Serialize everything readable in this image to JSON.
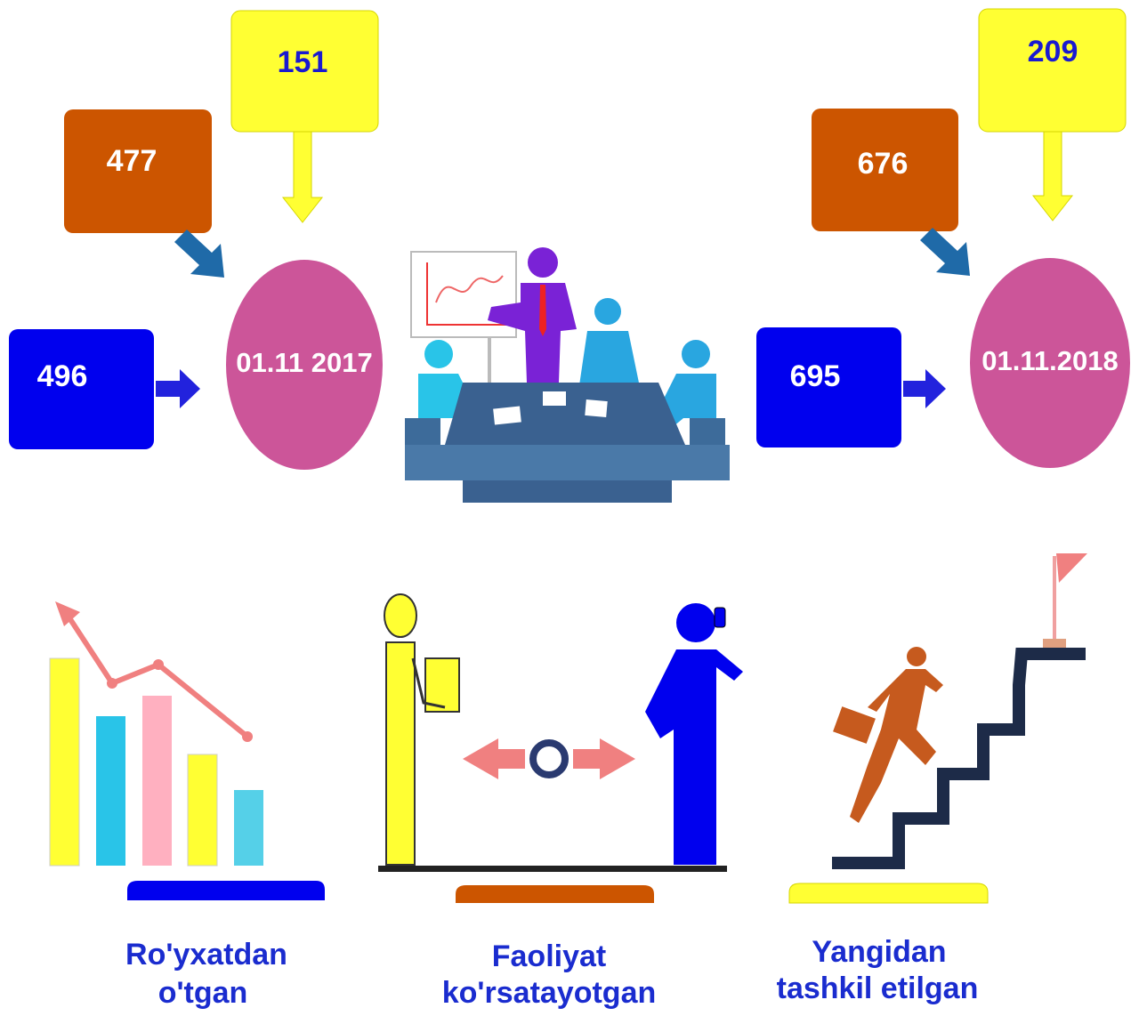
{
  "periods": [
    {
      "date": "01.11 2017",
      "registered": 496,
      "active": 477,
      "new": 151
    },
    {
      "date": "01.11.2018",
      "registered": 695,
      "active": 676,
      "new": 209
    }
  ],
  "legend": [
    {
      "lines": [
        "Ro'yxatdan",
        "o'tgan"
      ]
    },
    {
      "lines": [
        "Faoliyat",
        "ko'rsatayotgan"
      ]
    },
    {
      "lines": [
        "Yangidan",
        "tashkil etilgan"
      ]
    }
  ]
}
